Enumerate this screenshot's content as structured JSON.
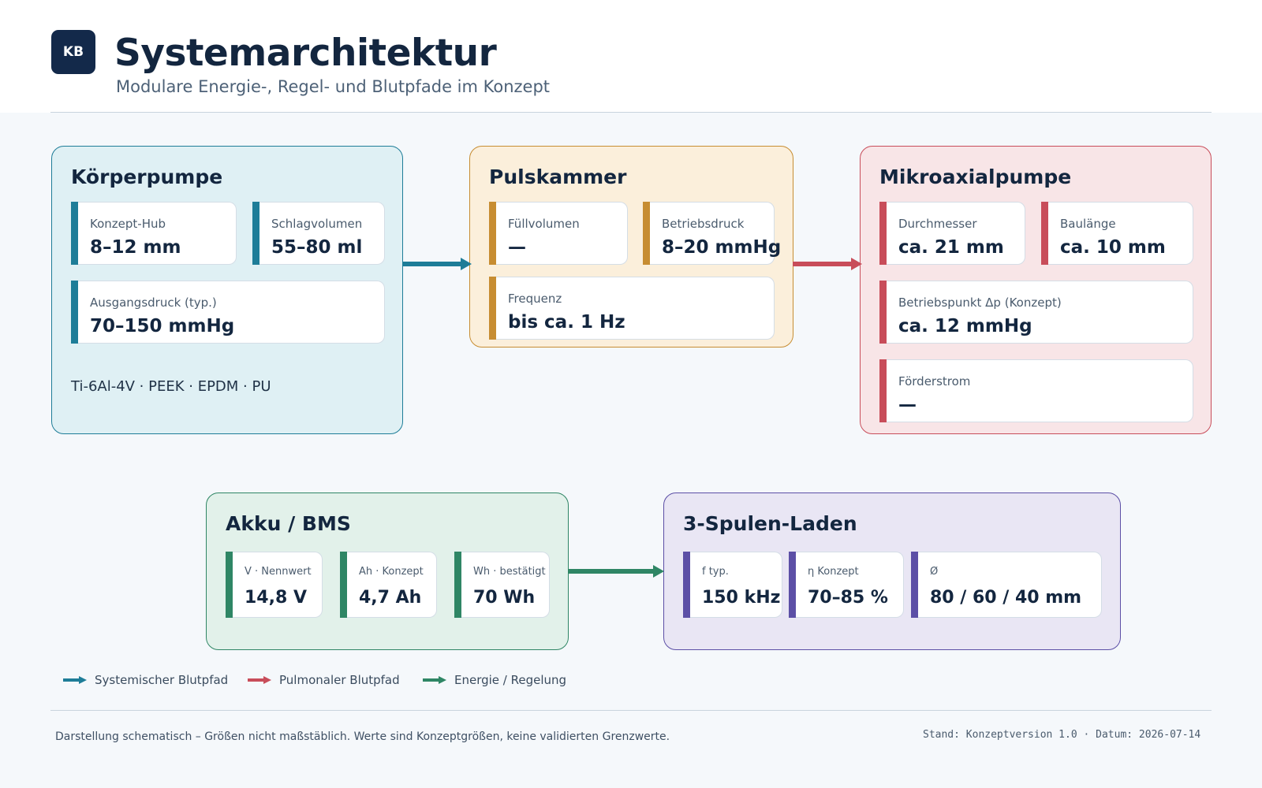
{
  "header": {
    "logo": "KB",
    "title": "Systemarchitektur",
    "subtitle": "Modulare Energie-, Regel- und Blutpfade im Konzept"
  },
  "modules": {
    "koerperpumpe": {
      "title": "Körperpumpe",
      "metrics": [
        {
          "label": "Konzept-Hub",
          "value": "8–12 mm"
        },
        {
          "label": "Schlagvolumen",
          "value": "55–80 ml"
        },
        {
          "label": "Ausgangsdruck (typ.)",
          "value": "70–150 mmHg"
        }
      ],
      "materials": "Ti-6Al-4V · PEEK · EPDM · PU",
      "color": "#1e7d98"
    },
    "pulskammer": {
      "title": "Pulskammer",
      "metrics": [
        {
          "label": "Füllvolumen",
          "value": "—"
        },
        {
          "label": "Betriebsdruck",
          "value": "8–20 mmHg"
        },
        {
          "label": "Frequenz",
          "value": "bis ca. 1 Hz"
        }
      ],
      "color": "#c78d32"
    },
    "mikroaxialpumpe": {
      "title": "Mikroaxialpumpe",
      "metrics": [
        {
          "label": "Durchmesser",
          "value": "ca. 21 mm"
        },
        {
          "label": "Baulänge",
          "value": "ca. 10 mm"
        },
        {
          "label": "Betriebspunkt Δp (Konzept)",
          "value": "ca. 12 mmHg"
        },
        {
          "label": "Förderstrom",
          "value": "—"
        }
      ],
      "color": "#c84d5a"
    },
    "akku": {
      "title": "Akku / BMS",
      "metrics": [
        {
          "label": "V · Nennwert",
          "value": "14,8 V"
        },
        {
          "label": "Ah · Konzept",
          "value": "4,7 Ah"
        },
        {
          "label": "Wh · bestätigt",
          "value": "70 Wh"
        }
      ],
      "color": "#2f8665"
    },
    "laden": {
      "title": "3-Spulen-Laden",
      "metrics": [
        {
          "label": "f typ.",
          "value": "150 kHz"
        },
        {
          "label": "η Konzept",
          "value": "70–85 %"
        },
        {
          "label": "Ø",
          "value": "80 / 60 / 40 mm"
        }
      ],
      "color": "#5c4fa6"
    }
  },
  "connections": [
    {
      "from": "koerperpumpe",
      "to": "pulskammer",
      "path": "systemic"
    },
    {
      "from": "pulskammer",
      "to": "mikroaxialpumpe",
      "path": "pulmonary"
    },
    {
      "from": "akku",
      "to": "laden",
      "path": "energy"
    }
  ],
  "legend": [
    {
      "label": "Systemischer Blutpfad",
      "color": "#1e7d98"
    },
    {
      "label": "Pulmonaler Blutpfad",
      "color": "#c84d5a"
    },
    {
      "label": "Energie / Regelung",
      "color": "#2f8665"
    }
  ],
  "footer": {
    "note": "Darstellung schematisch – Größen nicht maßstäblich. Werte sind Konzeptgrößen, keine validierten Grenzwerte.",
    "meta": "Stand: Konzeptversion 1.0 · Datum: 2026-07-14"
  }
}
